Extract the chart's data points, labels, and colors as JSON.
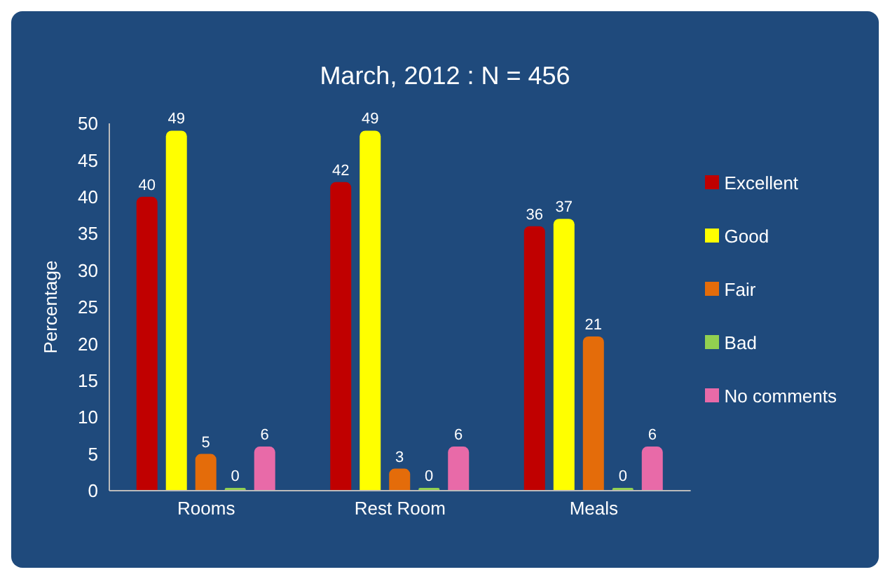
{
  "chart_data": {
    "type": "bar",
    "title": "March, 2012  :  N = 456",
    "ylabel": "Percentage",
    "categories": [
      "Rooms",
      "Rest Room",
      "Meals"
    ],
    "series": [
      {
        "name": "Excellent",
        "color": "#c00000",
        "values": [
          40,
          42,
          36
        ]
      },
      {
        "name": "Good",
        "color": "#ffff00",
        "values": [
          49,
          49,
          37
        ]
      },
      {
        "name": "Fair",
        "color": "#e46c0a",
        "values": [
          5,
          3,
          21
        ]
      },
      {
        "name": "Bad",
        "color": "#92d050",
        "values": [
          0,
          0,
          0
        ]
      },
      {
        "name": "No comments",
        "color": "#e86aa8",
        "values": [
          6,
          6,
          6
        ]
      }
    ],
    "ylim": [
      0,
      50
    ],
    "yticks": [
      0,
      5,
      10,
      15,
      20,
      25,
      30,
      35,
      40,
      45,
      50
    ],
    "data_labels": true,
    "legend": "right",
    "grid": false
  }
}
